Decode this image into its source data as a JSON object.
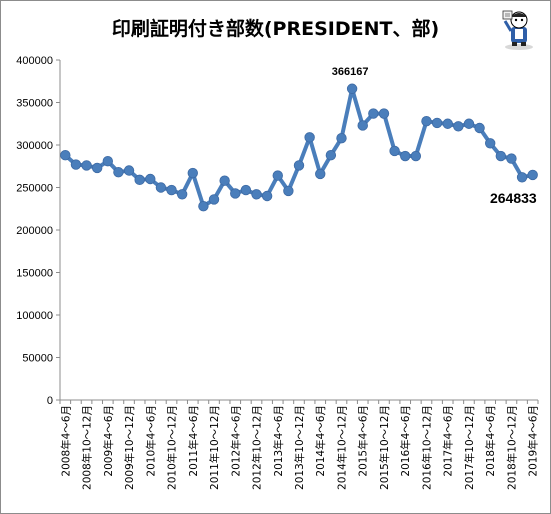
{
  "chart_data": {
    "type": "line",
    "title": "印刷証明付き部数(PRESIDENT、部)",
    "ylim": [
      0,
      400000
    ],
    "yticks": [
      0,
      50000,
      100000,
      150000,
      200000,
      250000,
      300000,
      350000,
      400000
    ],
    "grid": false,
    "line_color": "#4a7ebb",
    "x_tick_labels": [
      "2008年4～6月",
      "2008年10～12月",
      "2009年4～6月",
      "2009年10～12月",
      "2010年4～6月",
      "2010年10～12月",
      "2011年4～6月",
      "2011年10～12月",
      "2012年4～6月",
      "2012年10～12月",
      "2013年4～6月",
      "2013年10～12月",
      "2014年4～6月",
      "2014年10～12月",
      "2015年4～6月",
      "2015年10～12月",
      "2016年4～6月",
      "2016年10～12月",
      "2017年4～6月",
      "2017年10～12月",
      "2018年4～6月",
      "2018年10～12月",
      "2019年4～6月"
    ],
    "x_tick_every": 2,
    "values": [
      288000,
      277000,
      276000,
      273000,
      281000,
      268000,
      270000,
      259000,
      260000,
      250000,
      247000,
      242000,
      267000,
      228000,
      236000,
      258000,
      243000,
      247000,
      242000,
      240000,
      264000,
      246000,
      276000,
      309000,
      266000,
      288000,
      308000,
      366167,
      323000,
      337000,
      337000,
      293000,
      287000,
      287000,
      328000,
      326000,
      325000,
      322000,
      325000,
      320000,
      302000,
      287000,
      284000,
      262000,
      264833
    ],
    "data_labels": [
      {
        "index": 27,
        "text": "366167",
        "style": "small"
      },
      {
        "index": 44,
        "text": "264833",
        "style": "big"
      }
    ]
  },
  "mascot": {
    "icon": "mascot-character-icon"
  }
}
